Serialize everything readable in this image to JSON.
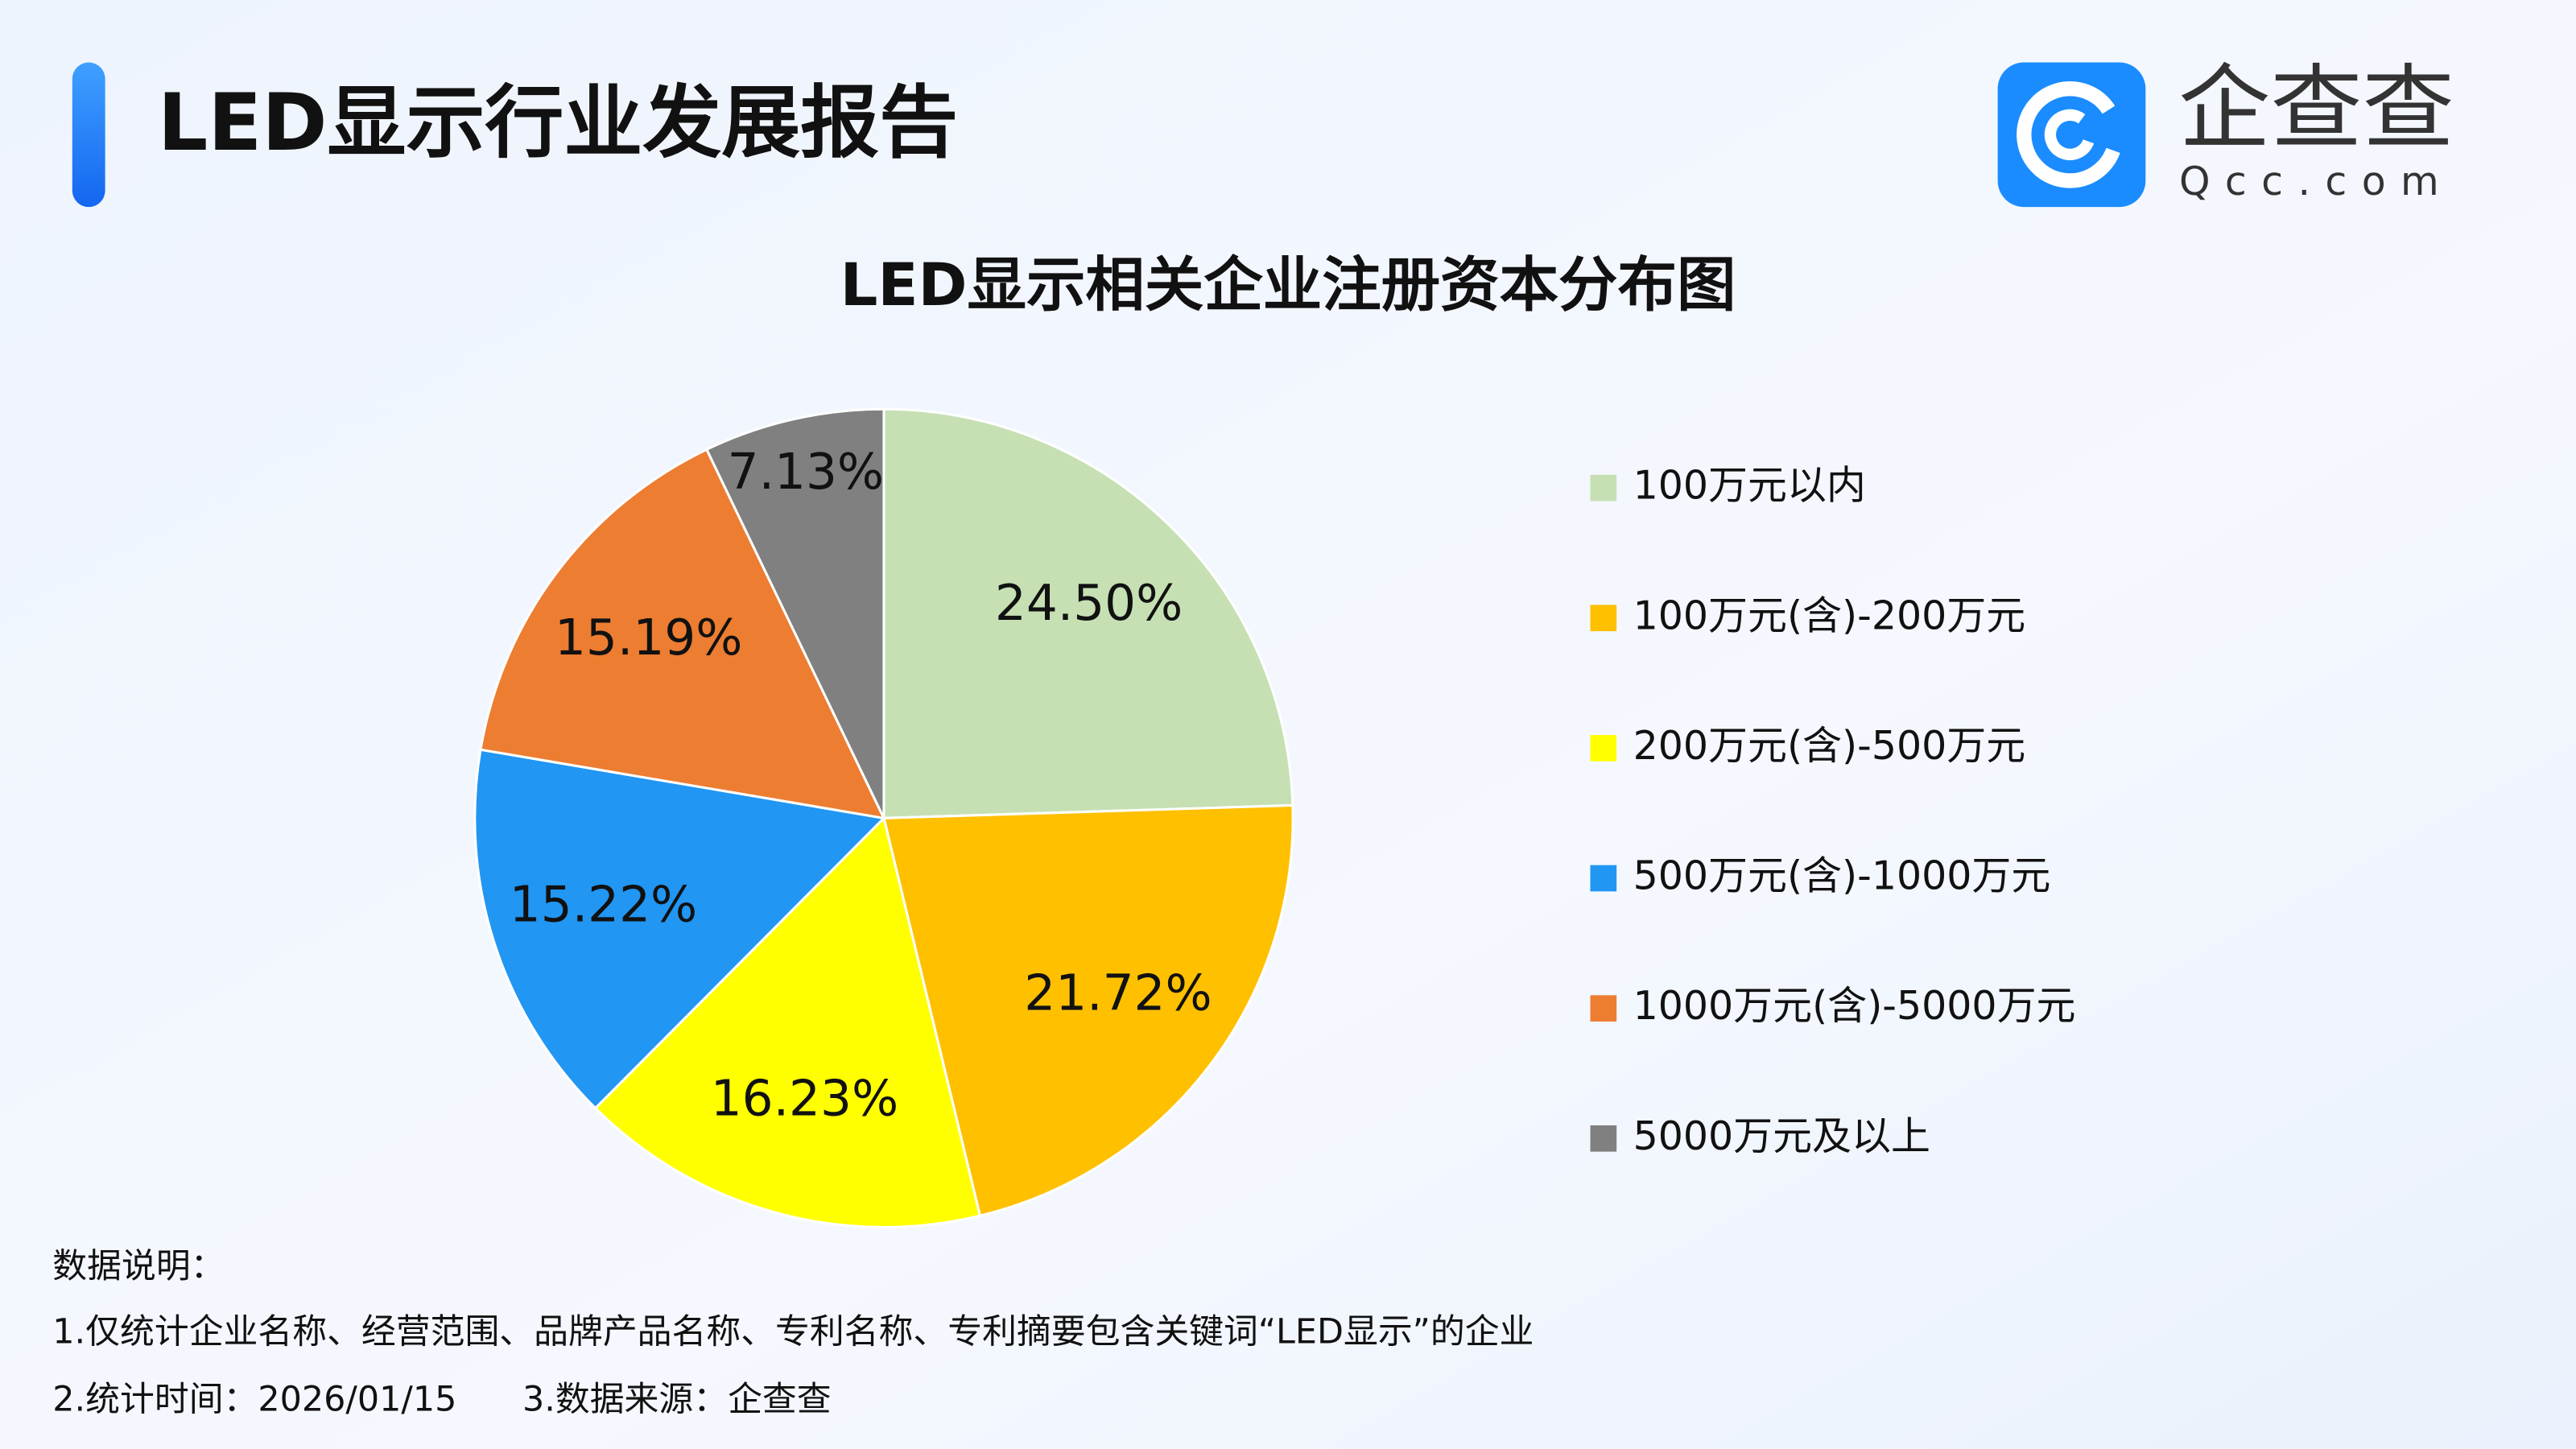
{
  "header": {
    "title": "LED显示行业发展报告",
    "logo_name": "企查查",
    "logo_domain": "Qcc.com"
  },
  "chart_data": {
    "type": "pie",
    "title": "LED显示相关企业注册资本分布图",
    "categories": [
      "100万元以内",
      "100万元(含)-200万元",
      "200万元(含)-500万元",
      "500万元(含)-1000万元",
      "1000万元(含)-5000万元",
      "5000万元及以上"
    ],
    "values": [
      24.5,
      21.72,
      16.23,
      15.22,
      15.19,
      7.13
    ],
    "value_labels": [
      "24.50%",
      "21.72%",
      "16.23%",
      "15.22%",
      "15.19%",
      "7.13%"
    ],
    "colors": [
      "#c6e0b4",
      "#ffc000",
      "#ffff00",
      "#2196f3",
      "#ed7d31",
      "#808080"
    ],
    "legend": "right"
  },
  "notes": {
    "heading": "数据说明：",
    "lines": [
      "1.仅统计企业名称、经营范围、品牌产品名称、专利名称、专利摘要包含关键词“LED显示”的企业",
      "2.统计时间：2026/01/15",
      "3.数据来源：企查查"
    ]
  }
}
